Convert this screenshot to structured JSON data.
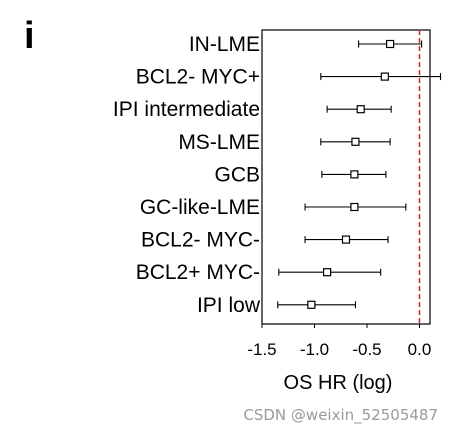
{
  "panel_label": "i",
  "watermark": "CSDN @weixin_52505487",
  "chart_data": {
    "type": "forest",
    "xlabel": "OS HR (log)",
    "xlim": [
      -1.5,
      0.1
    ],
    "xticks": [
      -1.5,
      -1.0,
      -0.5,
      0.0
    ],
    "xtick_labels": [
      "-1.5",
      "-1.0",
      "-0.5",
      "0.0"
    ],
    "reference_line": {
      "x": 0.0,
      "style": "dashed",
      "color": "#d62728"
    },
    "marker": "open-square",
    "colors": {
      "points": "#000000",
      "reference": "#d62728",
      "frame": "#000000"
    },
    "grid": false,
    "rows": [
      {
        "label": "IN-LME",
        "estimate": -0.28,
        "ci_low": -0.58,
        "ci_high": 0.02
      },
      {
        "label": "BCL2- MYC+",
        "estimate": -0.33,
        "ci_low": -0.94,
        "ci_high": 0.2
      },
      {
        "label": "IPI intermediate",
        "estimate": -0.56,
        "ci_low": -0.88,
        "ci_high": -0.27
      },
      {
        "label": "MS-LME",
        "estimate": -0.61,
        "ci_low": -0.94,
        "ci_high": -0.28
      },
      {
        "label": "GCB",
        "estimate": -0.62,
        "ci_low": -0.93,
        "ci_high": -0.32
      },
      {
        "label": "GC-like-LME",
        "estimate": -0.62,
        "ci_low": -1.09,
        "ci_high": -0.13
      },
      {
        "label": "BCL2- MYC-",
        "estimate": -0.7,
        "ci_low": -1.09,
        "ci_high": -0.3
      },
      {
        "label": "BCL2+ MYC-",
        "estimate": -0.88,
        "ci_low": -1.34,
        "ci_high": -0.37
      },
      {
        "label": "IPI low",
        "estimate": -1.03,
        "ci_low": -1.35,
        "ci_high": -0.61
      }
    ]
  }
}
